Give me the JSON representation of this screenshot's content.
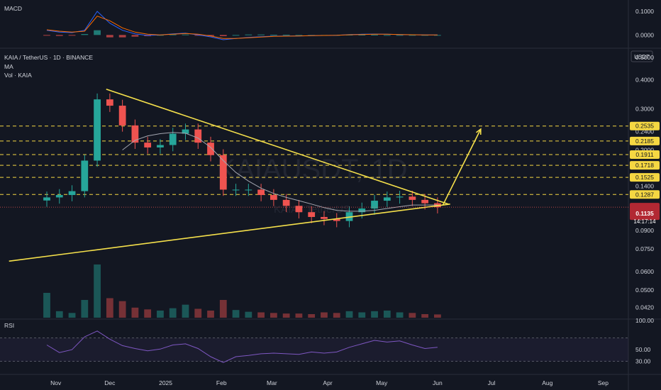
{
  "symbol": {
    "title": "KAIA / TetherUS · 1D · BINANCE",
    "indicator_ma": "MA",
    "indicator_vol": "Vol · KAIA",
    "watermark": "KAIAUSDT, 1D",
    "watermark_sub": "KAIA / TetherUS"
  },
  "macd_panel": {
    "label": "MACD",
    "ticks": [
      {
        "v": 0.1,
        "label": "0.1000"
      },
      {
        "v": 0.0,
        "label": "0.0000"
      }
    ]
  },
  "rsi_panel": {
    "label": "RSI",
    "ticks": [
      {
        "v": 100,
        "label": "100.00"
      },
      {
        "v": 50,
        "label": "50.00"
      },
      {
        "v": 30,
        "label": "30.00"
      }
    ],
    "band_upper": 70,
    "band_lower": 30
  },
  "price_axis": {
    "currency": "USDT",
    "ticks": [
      "0.5000",
      "0.4000",
      "0.3000",
      "0.2400",
      "0.2000",
      "0.1400",
      "0.0900",
      "0.0750",
      "0.0600",
      "0.0500",
      "0.0420"
    ],
    "last_price": "0.1135",
    "countdown": "14:17:14"
  },
  "levels": [
    {
      "value": 0.2535,
      "label": "0.2535"
    },
    {
      "value": 0.2185,
      "label": "0.2185"
    },
    {
      "value": 0.1911,
      "label": "0.1911"
    },
    {
      "value": 0.1718,
      "label": "0.1718"
    },
    {
      "value": 0.1525,
      "label": "0.1525"
    },
    {
      "value": 0.1287,
      "label": "0.1287"
    }
  ],
  "time_axis": [
    "Nov",
    "Dec",
    "2025",
    "Feb",
    "Mar",
    "Apr",
    "May",
    "Jun",
    "Jul",
    "Aug",
    "Sep"
  ],
  "colors": {
    "bg": "#131722",
    "up": "#26a69a",
    "down": "#ef5350",
    "level": "#f5d742",
    "trendline": "#f5e04b",
    "ma": "#a3a6b0",
    "rsi": "#7e57c2",
    "macd": "#2962ff",
    "signal": "#ff6d00",
    "last_price_bg": "#b22833"
  },
  "chart_data": {
    "type": "candlestick",
    "title": "KAIA / TetherUS · 1D · BINANCE",
    "scale": "log",
    "ylim": [
      0.038,
      0.54
    ],
    "x": [
      "2024-10-27",
      "2024-11-03",
      "2024-11-10",
      "2024-11-17",
      "2024-11-24",
      "2024-12-01",
      "2024-12-08",
      "2024-12-15",
      "2024-12-22",
      "2024-12-29",
      "2025-01-05",
      "2025-01-12",
      "2025-01-19",
      "2025-01-26",
      "2025-02-02",
      "2025-02-09",
      "2025-02-16",
      "2025-02-23",
      "2025-03-02",
      "2025-03-09",
      "2025-03-16",
      "2025-03-23",
      "2025-03-30",
      "2025-04-06",
      "2025-04-13",
      "2025-04-20",
      "2025-04-27",
      "2025-05-04",
      "2025-05-11",
      "2025-05-18",
      "2025-05-25",
      "2025-06-01"
    ],
    "series": [
      {
        "name": "KAIA",
        "close": [
          0.125,
          0.128,
          0.133,
          0.18,
          0.33,
          0.31,
          0.255,
          0.215,
          0.205,
          0.21,
          0.235,
          0.245,
          0.215,
          0.19,
          0.135,
          0.135,
          0.135,
          0.128,
          0.122,
          0.115,
          0.108,
          0.103,
          0.101,
          0.099,
          0.108,
          0.112,
          0.121,
          0.125,
          0.126,
          0.122,
          0.118,
          0.1135
        ]
      },
      {
        "name": "MA",
        "values": [
          null,
          null,
          null,
          null,
          null,
          null,
          0.2,
          0.22,
          0.23,
          0.235,
          0.238,
          0.236,
          0.225,
          0.205,
          0.18,
          0.16,
          0.147,
          0.137,
          0.13,
          0.125,
          0.121,
          0.117,
          0.113,
          0.11,
          0.109,
          0.109,
          0.11,
          0.112,
          0.114,
          0.116,
          0.116,
          0.116
        ]
      },
      {
        "name": "Vol",
        "values": [
          420,
          110,
          80,
          300,
          900,
          330,
          280,
          170,
          140,
          120,
          160,
          220,
          150,
          120,
          300,
          130,
          100,
          90,
          80,
          70,
          70,
          60,
          90,
          80,
          110,
          90,
          110,
          120,
          90,
          80,
          60,
          55
        ]
      },
      {
        "name": "RSI",
        "values": [
          58,
          45,
          50,
          72,
          82,
          68,
          57,
          52,
          48,
          51,
          58,
          60,
          52,
          38,
          28,
          38,
          40,
          43,
          44,
          43,
          42,
          46,
          44,
          46,
          54,
          60,
          66,
          63,
          65,
          58,
          52,
          54
        ]
      },
      {
        "name": "MACD",
        "values": [
          0.02,
          0.012,
          0.01,
          0.02,
          0.1,
          0.05,
          0.02,
          0.005,
          -0.002,
          0.0,
          0.005,
          0.008,
          0.0,
          -0.008,
          -0.02,
          -0.015,
          -0.01,
          -0.007,
          -0.005,
          -0.004,
          -0.004,
          -0.003,
          -0.002,
          -0.001,
          0.002,
          0.003,
          0.004,
          0.003,
          0.002,
          0.001,
          0.0,
          0.0
        ]
      },
      {
        "name": "Signal",
        "values": [
          0.022,
          0.016,
          0.012,
          0.016,
          0.08,
          0.06,
          0.03,
          0.012,
          0.003,
          0.0,
          0.003,
          0.006,
          0.003,
          -0.004,
          -0.015,
          -0.015,
          -0.012,
          -0.009,
          -0.006,
          -0.005,
          -0.004,
          -0.003,
          -0.002,
          -0.001,
          0.001,
          0.002,
          0.003,
          0.003,
          0.002,
          0.001,
          0.0,
          0.0
        ]
      }
    ],
    "trendlines": [
      {
        "from": [
          "2024-11-29",
          0.365
        ],
        "to": [
          "2025-06-07",
          0.117
        ]
      },
      {
        "from": [
          "2024-10-06",
          0.0665
        ],
        "to": [
          "2025-06-08",
          0.117
        ]
      },
      {
        "from": [
          "2025-06-04",
          0.116
        ],
        "to": [
          "2025-06-25",
          0.246
        ]
      }
    ]
  }
}
